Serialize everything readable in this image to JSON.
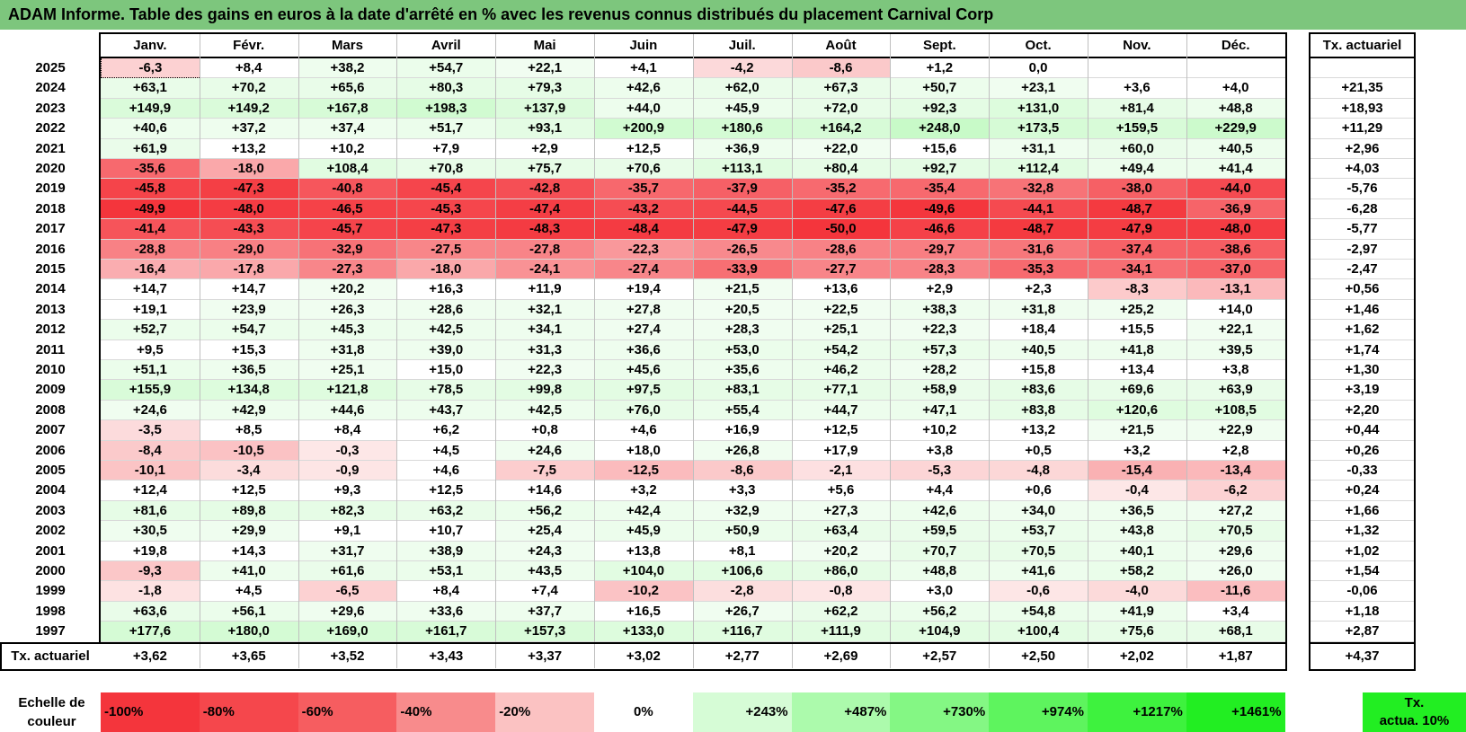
{
  "title": "ADAM Informe. Table des gains en euros à la date d'arrêté en % avec les revenus connus distribués du placement Carnival Corp",
  "months": [
    "Janv.",
    "Févr.",
    "Mars",
    "Avril",
    "Mai",
    "Juin",
    "Juil.",
    "Août",
    "Sept.",
    "Oct.",
    "Nov.",
    "Déc."
  ],
  "rate_header": "Tx. actuariel",
  "rows": [
    {
      "year": "2025",
      "values": [
        "-6,3",
        "+8,4",
        "+38,2",
        "+54,7",
        "+22,1",
        "+4,1",
        "-4,2",
        "-8,6",
        "+1,2",
        "0,0",
        "",
        ""
      ],
      "rate": ""
    },
    {
      "year": "2024",
      "values": [
        "+63,1",
        "+70,2",
        "+65,6",
        "+80,3",
        "+79,3",
        "+42,6",
        "+62,0",
        "+67,3",
        "+50,7",
        "+23,1",
        "+3,6",
        "+4,0"
      ],
      "rate": "+21,35"
    },
    {
      "year": "2023",
      "values": [
        "+149,9",
        "+149,2",
        "+167,8",
        "+198,3",
        "+137,9",
        "+44,0",
        "+45,9",
        "+72,0",
        "+92,3",
        "+131,0",
        "+81,4",
        "+48,8"
      ],
      "rate": "+18,93"
    },
    {
      "year": "2022",
      "values": [
        "+40,6",
        "+37,2",
        "+37,4",
        "+51,7",
        "+93,1",
        "+200,9",
        "+180,6",
        "+164,2",
        "+248,0",
        "+173,5",
        "+159,5",
        "+229,9"
      ],
      "rate": "+11,29"
    },
    {
      "year": "2021",
      "values": [
        "+61,9",
        "+13,2",
        "+10,2",
        "+7,9",
        "+2,9",
        "+12,5",
        "+36,9",
        "+22,0",
        "+15,6",
        "+31,1",
        "+60,0",
        "+40,5"
      ],
      "rate": "+2,96"
    },
    {
      "year": "2020",
      "values": [
        "-35,6",
        "-18,0",
        "+108,4",
        "+70,8",
        "+75,7",
        "+70,6",
        "+113,1",
        "+80,4",
        "+92,7",
        "+112,4",
        "+49,4",
        "+41,4"
      ],
      "rate": "+4,03"
    },
    {
      "year": "2019",
      "values": [
        "-45,8",
        "-47,3",
        "-40,8",
        "-45,4",
        "-42,8",
        "-35,7",
        "-37,9",
        "-35,2",
        "-35,4",
        "-32,8",
        "-38,0",
        "-44,0"
      ],
      "rate": "-5,76"
    },
    {
      "year": "2018",
      "values": [
        "-49,9",
        "-48,0",
        "-46,5",
        "-45,3",
        "-47,4",
        "-43,2",
        "-44,5",
        "-47,6",
        "-49,6",
        "-44,1",
        "-48,7",
        "-36,9"
      ],
      "rate": "-6,28"
    },
    {
      "year": "2017",
      "values": [
        "-41,4",
        "-43,3",
        "-45,7",
        "-47,3",
        "-48,3",
        "-48,4",
        "-47,9",
        "-50,0",
        "-46,6",
        "-48,7",
        "-47,9",
        "-48,0"
      ],
      "rate": "-5,77"
    },
    {
      "year": "2016",
      "values": [
        "-28,8",
        "-29,0",
        "-32,9",
        "-27,5",
        "-27,8",
        "-22,3",
        "-26,5",
        "-28,6",
        "-29,7",
        "-31,6",
        "-37,4",
        "-38,6"
      ],
      "rate": "-2,97"
    },
    {
      "year": "2015",
      "values": [
        "-16,4",
        "-17,8",
        "-27,3",
        "-18,0",
        "-24,1",
        "-27,4",
        "-33,9",
        "-27,7",
        "-28,3",
        "-35,3",
        "-34,1",
        "-37,0"
      ],
      "rate": "-2,47"
    },
    {
      "year": "2014",
      "values": [
        "+14,7",
        "+14,7",
        "+20,2",
        "+16,3",
        "+11,9",
        "+19,4",
        "+21,5",
        "+13,6",
        "+2,9",
        "+2,3",
        "-8,3",
        "-13,1"
      ],
      "rate": "+0,56"
    },
    {
      "year": "2013",
      "values": [
        "+19,1",
        "+23,9",
        "+26,3",
        "+28,6",
        "+32,1",
        "+27,8",
        "+20,5",
        "+22,5",
        "+38,3",
        "+31,8",
        "+25,2",
        "+14,0"
      ],
      "rate": "+1,46"
    },
    {
      "year": "2012",
      "values": [
        "+52,7",
        "+54,7",
        "+45,3",
        "+42,5",
        "+34,1",
        "+27,4",
        "+28,3",
        "+25,1",
        "+22,3",
        "+18,4",
        "+15,5",
        "+22,1"
      ],
      "rate": "+1,62"
    },
    {
      "year": "2011",
      "values": [
        "+9,5",
        "+15,3",
        "+31,8",
        "+39,0",
        "+31,3",
        "+36,6",
        "+53,0",
        "+54,2",
        "+57,3",
        "+40,5",
        "+41,8",
        "+39,5"
      ],
      "rate": "+1,74"
    },
    {
      "year": "2010",
      "values": [
        "+51,1",
        "+36,5",
        "+25,1",
        "+15,0",
        "+22,3",
        "+45,6",
        "+35,6",
        "+46,2",
        "+28,2",
        "+15,8",
        "+13,4",
        "+3,8"
      ],
      "rate": "+1,30"
    },
    {
      "year": "2009",
      "values": [
        "+155,9",
        "+134,8",
        "+121,8",
        "+78,5",
        "+99,8",
        "+97,5",
        "+83,1",
        "+77,1",
        "+58,9",
        "+83,6",
        "+69,6",
        "+63,9"
      ],
      "rate": "+3,19"
    },
    {
      "year": "2008",
      "values": [
        "+24,6",
        "+42,9",
        "+44,6",
        "+43,7",
        "+42,5",
        "+76,0",
        "+55,4",
        "+44,7",
        "+47,1",
        "+83,8",
        "+120,6",
        "+108,5"
      ],
      "rate": "+2,20"
    },
    {
      "year": "2007",
      "values": [
        "-3,5",
        "+8,5",
        "+8,4",
        "+6,2",
        "+0,8",
        "+4,6",
        "+16,9",
        "+12,5",
        "+10,2",
        "+13,2",
        "+21,5",
        "+22,9"
      ],
      "rate": "+0,44"
    },
    {
      "year": "2006",
      "values": [
        "-8,4",
        "-10,5",
        "-0,3",
        "+4,5",
        "+24,6",
        "+18,0",
        "+26,8",
        "+17,9",
        "+3,8",
        "+0,5",
        "+3,2",
        "+2,8"
      ],
      "rate": "+0,26"
    },
    {
      "year": "2005",
      "values": [
        "-10,1",
        "-3,4",
        "-0,9",
        "+4,6",
        "-7,5",
        "-12,5",
        "-8,6",
        "-2,1",
        "-5,3",
        "-4,8",
        "-15,4",
        "-13,4"
      ],
      "rate": "-0,33"
    },
    {
      "year": "2004",
      "values": [
        "+12,4",
        "+12,5",
        "+9,3",
        "+12,5",
        "+14,6",
        "+3,2",
        "+3,3",
        "+5,6",
        "+4,4",
        "+0,6",
        "-0,4",
        "-6,2"
      ],
      "rate": "+0,24"
    },
    {
      "year": "2003",
      "values": [
        "+81,6",
        "+89,8",
        "+82,3",
        "+63,2",
        "+56,2",
        "+42,4",
        "+32,9",
        "+27,3",
        "+42,6",
        "+34,0",
        "+36,5",
        "+27,2"
      ],
      "rate": "+1,66"
    },
    {
      "year": "2002",
      "values": [
        "+30,5",
        "+29,9",
        "+9,1",
        "+10,7",
        "+25,4",
        "+45,9",
        "+50,9",
        "+63,4",
        "+59,5",
        "+53,7",
        "+43,8",
        "+70,5"
      ],
      "rate": "+1,32"
    },
    {
      "year": "2001",
      "values": [
        "+19,8",
        "+14,3",
        "+31,7",
        "+38,9",
        "+24,3",
        "+13,8",
        "+8,1",
        "+20,2",
        "+70,7",
        "+70,5",
        "+40,1",
        "+29,6"
      ],
      "rate": "+1,02"
    },
    {
      "year": "2000",
      "values": [
        "-9,3",
        "+41,0",
        "+61,6",
        "+53,1",
        "+43,5",
        "+104,0",
        "+106,6",
        "+86,0",
        "+48,8",
        "+41,6",
        "+58,2",
        "+26,0"
      ],
      "rate": "+1,54"
    },
    {
      "year": "1999",
      "values": [
        "-1,8",
        "+4,5",
        "-6,5",
        "+8,4",
        "+7,4",
        "-10,2",
        "-2,8",
        "-0,8",
        "+3,0",
        "-0,6",
        "-4,0",
        "-11,6"
      ],
      "rate": "-0,06"
    },
    {
      "year": "1998",
      "values": [
        "+63,6",
        "+56,1",
        "+29,6",
        "+33,6",
        "+37,7",
        "+16,5",
        "+26,7",
        "+62,2",
        "+56,2",
        "+54,8",
        "+41,9",
        "+3,4"
      ],
      "rate": "+1,18"
    },
    {
      "year": "1997",
      "values": [
        "+177,6",
        "+180,0",
        "+169,0",
        "+161,7",
        "+157,3",
        "+133,0",
        "+116,7",
        "+111,9",
        "+104,9",
        "+100,4",
        "+75,6",
        "+68,1"
      ],
      "rate": "+2,87"
    }
  ],
  "footer": {
    "label": "Tx. actuariel",
    "values": [
      "+3,62",
      "+3,65",
      "+3,52",
      "+3,43",
      "+3,37",
      "+3,02",
      "+2,77",
      "+2,69",
      "+2,57",
      "+2,50",
      "+2,02",
      "+1,87"
    ],
    "rate": "+4,37"
  },
  "scale": {
    "label_line1": "Echelle de",
    "label_line2": "couleur",
    "steps": [
      {
        "label": "-100%",
        "color": "#f4353c",
        "align": "left"
      },
      {
        "label": "-80%",
        "color": "#f5474c",
        "align": "left"
      },
      {
        "label": "-60%",
        "color": "#f65d60",
        "align": "left"
      },
      {
        "label": "-40%",
        "color": "#f88b8c",
        "align": "left"
      },
      {
        "label": "-20%",
        "color": "#fbc2c2",
        "align": "left"
      },
      {
        "label": "0%",
        "color": "#ffffff",
        "align": "center"
      },
      {
        "label": "+243%",
        "color": "#d6fcd6",
        "align": "right"
      },
      {
        "label": "+487%",
        "color": "#acfaac",
        "align": "right"
      },
      {
        "label": "+730%",
        "color": "#84f784",
        "align": "right"
      },
      {
        "label": "+974%",
        "color": "#5ef45e",
        "align": "right"
      },
      {
        "label": "+1217%",
        "color": "#3ef23e",
        "align": "right"
      },
      {
        "label": "+1461%",
        "color": "#22ee22",
        "align": "right"
      }
    ],
    "last_line1": "Tx.",
    "last_line2": "actua. 10%",
    "last_color": "#22ee22"
  },
  "colors": {
    "title_bg": "#7dc67d",
    "neg_max": "#f4353c",
    "pos_light": "#ecfcec"
  }
}
